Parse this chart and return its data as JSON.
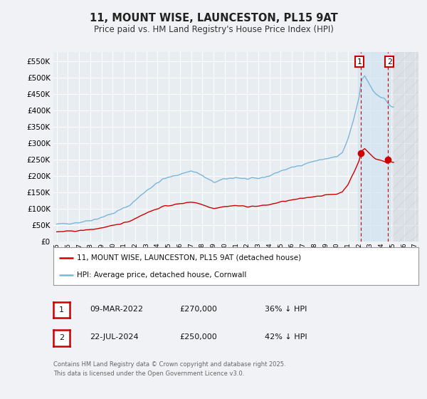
{
  "title": "11, MOUNT WISE, LAUNCESTON, PL15 9AT",
  "subtitle": "Price paid vs. HM Land Registry's House Price Index (HPI)",
  "ytick_values": [
    0,
    50000,
    100000,
    150000,
    200000,
    250000,
    300000,
    350000,
    400000,
    450000,
    500000,
    550000
  ],
  "ylim": [
    0,
    578000
  ],
  "xlim_start": 1994.7,
  "xlim_end": 2027.3,
  "hpi_color": "#7ab6d9",
  "price_color": "#cc0000",
  "background_color": "#f0f2f5",
  "plot_bg_color": "#e8edf2",
  "grid_color": "#ffffff",
  "sale1_x": 2022.18,
  "sale1_y": 270000,
  "sale2_x": 2024.55,
  "sale2_y": 250000,
  "shade_x1": 2021.9,
  "shade_x2": 2024.75,
  "future_x1": 2025.0,
  "legend_label_price": "11, MOUNT WISE, LAUNCESTON, PL15 9AT (detached house)",
  "legend_label_hpi": "HPI: Average price, detached house, Cornwall",
  "table_row1": [
    "1",
    "09-MAR-2022",
    "£270,000",
    "36% ↓ HPI"
  ],
  "table_row2": [
    "2",
    "22-JUL-2024",
    "£250,000",
    "42% ↓ HPI"
  ],
  "footer": "Contains HM Land Registry data © Crown copyright and database right 2025.\nThis data is licensed under the Open Government Licence v3.0."
}
